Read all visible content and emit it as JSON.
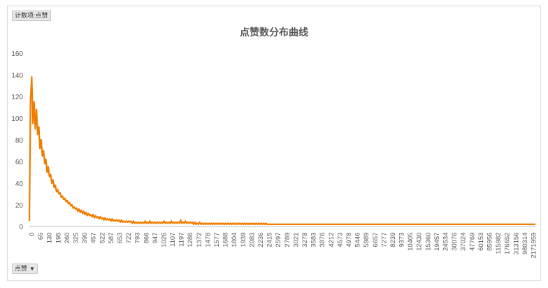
{
  "filter_top": {
    "label": "计数项:点赞"
  },
  "filter_bottom": {
    "label": "点赞",
    "arrow": "▼"
  },
  "colors": {
    "line": "#f07c00",
    "axis_text": "#595959",
    "axis_line": "#bfbfbf"
  },
  "chart_data": {
    "type": "line",
    "title": "点赞数分布曲线",
    "xlabel": "",
    "ylabel": "",
    "ylim": [
      0,
      160
    ],
    "yticks": [
      0,
      20,
      40,
      60,
      80,
      100,
      120,
      140,
      160
    ],
    "grid": false,
    "legend": "none",
    "x_tick_labels": [
      "0",
      "65",
      "130",
      "195",
      "260",
      "325",
      "390",
      "457",
      "522",
      "587",
      "653",
      "722",
      "793",
      "866",
      "947",
      "1026",
      "1107",
      "1197",
      "1286",
      "1372",
      "1478",
      "1577",
      "1688",
      "1804",
      "1939",
      "2083",
      "2236",
      "2415",
      "2597",
      "2789",
      "3021",
      "3278",
      "3583",
      "3876",
      "4212",
      "4573",
      "4978",
      "5446",
      "5989",
      "6657",
      "7277",
      "8239",
      "9373",
      "10405",
      "12430",
      "15360",
      "19457",
      "24534",
      "30076",
      "37024",
      "47769",
      "60153",
      "85956",
      "115982",
      "176652",
      "313156",
      "980314",
      "2171959"
    ],
    "series": [
      {
        "values": [
          5,
          118,
          138,
          95,
          115,
          90,
          108,
          85,
          92,
          72,
          80,
          65,
          70,
          58,
          62,
          50,
          55,
          46,
          48,
          40,
          43,
          36,
          38,
          32,
          34,
          30,
          31,
          27,
          28,
          25,
          26,
          23,
          24,
          21,
          22,
          19,
          20,
          17,
          18,
          16,
          17,
          14,
          16,
          13,
          15,
          12,
          14,
          11,
          13,
          10,
          12,
          10,
          11,
          9,
          11,
          8,
          10,
          8,
          9,
          7,
          9,
          7,
          8,
          6,
          8,
          6,
          7,
          6,
          7,
          5,
          7,
          5,
          6,
          5,
          6,
          5,
          6,
          4,
          6,
          4,
          5,
          4,
          5,
          4,
          5,
          4,
          5,
          3,
          5,
          3,
          4,
          3,
          4,
          3,
          4,
          3,
          4,
          3,
          5,
          3,
          4,
          3,
          5,
          3,
          4,
          3,
          4,
          3,
          4,
          3,
          4,
          3,
          4,
          3,
          5,
          3,
          4,
          3,
          4,
          3,
          5,
          3,
          4,
          3,
          4,
          3,
          4,
          3,
          6,
          3,
          4,
          3,
          5,
          3,
          4,
          3,
          4,
          3,
          4,
          2,
          4,
          2,
          3,
          2,
          4,
          2,
          3,
          2,
          3,
          2,
          3,
          2,
          3,
          2,
          3,
          2,
          3,
          2,
          3,
          2,
          3,
          2,
          3,
          2,
          3,
          2,
          3,
          2,
          3,
          2,
          3,
          2,
          3,
          2,
          3,
          2,
          3,
          2,
          3,
          2,
          3,
          2,
          3,
          2,
          3,
          2,
          3,
          2,
          3,
          2,
          3,
          2,
          3,
          2,
          3,
          2,
          3,
          2,
          3,
          2,
          3,
          2,
          2,
          2,
          2,
          2,
          2,
          2,
          2,
          2,
          2,
          2,
          2,
          2,
          2,
          2,
          2,
          2,
          2,
          2,
          2,
          2,
          2,
          2,
          2,
          2,
          2,
          2,
          2,
          2,
          2,
          2,
          2,
          2,
          2,
          2,
          2,
          2,
          2,
          2,
          2,
          2,
          2,
          2,
          2,
          2,
          2,
          2,
          2,
          2,
          2,
          2,
          2,
          2,
          2,
          2,
          2,
          2,
          2,
          2,
          2,
          2,
          2,
          2,
          2,
          2,
          2,
          2,
          2,
          2,
          2,
          2,
          2,
          2,
          2,
          2,
          2,
          2,
          2,
          2,
          2,
          2,
          2,
          2,
          2,
          2,
          2,
          2,
          2,
          2,
          2,
          2,
          2,
          2,
          2,
          2,
          2,
          2,
          2,
          2,
          2,
          2,
          2,
          2,
          2,
          2,
          2,
          2,
          2,
          2,
          2,
          2,
          2,
          2,
          2,
          2,
          2,
          2,
          2,
          2,
          2,
          2,
          2,
          2,
          2,
          2,
          2,
          2,
          2,
          2,
          2,
          2,
          2,
          2,
          2,
          2,
          2,
          2,
          2,
          2,
          2,
          2,
          2,
          2,
          2,
          2,
          2,
          2,
          2,
          2,
          2,
          2,
          2,
          2,
          2,
          2,
          2,
          2,
          2,
          2,
          2,
          2,
          2,
          2,
          2,
          2,
          2,
          2,
          2,
          2,
          2,
          2,
          2,
          2,
          2,
          2,
          2,
          2,
          2,
          2,
          2,
          2,
          2,
          2,
          2,
          2,
          2,
          2,
          2,
          2,
          2,
          2,
          2,
          2,
          2,
          2,
          2,
          2,
          2,
          2,
          2,
          2,
          2,
          2,
          2,
          2,
          2,
          2,
          2,
          2,
          2,
          2,
          2,
          2,
          2,
          2,
          2,
          2,
          2,
          2,
          2,
          2,
          2,
          2,
          2,
          2,
          2,
          2,
          2
        ]
      }
    ]
  }
}
